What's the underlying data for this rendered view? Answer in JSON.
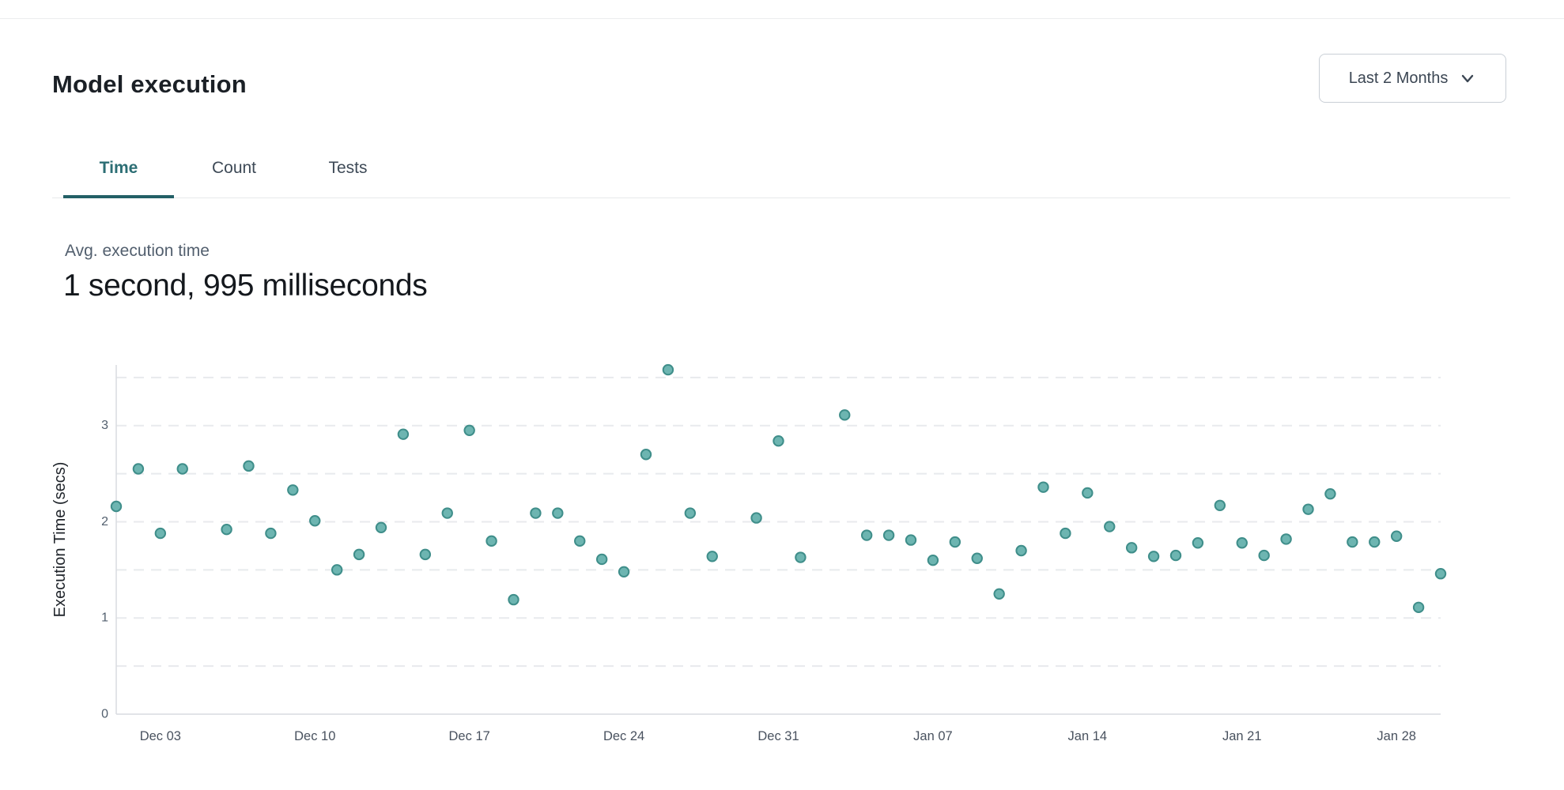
{
  "header": {
    "title": "Model execution"
  },
  "range_selector": {
    "label": "Last 2 Months",
    "icon": "chevron-down"
  },
  "tabs": [
    {
      "label": "Time",
      "active": true
    },
    {
      "label": "Count",
      "active": false
    },
    {
      "label": "Tests",
      "active": false
    }
  ],
  "stats": {
    "label": "Avg. execution time",
    "value": "1 second, 995 milliseconds"
  },
  "colors": {
    "accent_teal": "#2c6e74",
    "tab_underline": "#236066",
    "point_fill": "#6db5b1",
    "point_stroke": "#3f8e8a",
    "grid": "#e8eaed",
    "axis": "#d9dce0",
    "tick_text": "#525f6e",
    "top_rule": "#ecedef"
  },
  "chart_data": {
    "type": "scatter",
    "title": "",
    "xlabel": "",
    "ylabel": "Execution Time (secs)",
    "x_unit": "days since Dec 01",
    "xlim": [
      0,
      60
    ],
    "ylim": [
      0,
      3.63
    ],
    "grid": "horizontal dashed every 0.5",
    "legend": "none",
    "y_ticks": [
      0,
      1,
      2,
      3
    ],
    "x_ticks": [
      {
        "day": 2,
        "label": "Dec 03"
      },
      {
        "day": 9,
        "label": "Dec 10"
      },
      {
        "day": 16,
        "label": "Dec 17"
      },
      {
        "day": 23,
        "label": "Dec 24"
      },
      {
        "day": 30,
        "label": "Dec 31"
      },
      {
        "day": 37,
        "label": "Jan 07"
      },
      {
        "day": 44,
        "label": "Jan 14"
      },
      {
        "day": 51,
        "label": "Jan 21"
      },
      {
        "day": 58,
        "label": "Jan 28"
      }
    ],
    "points": [
      [
        0,
        2.16
      ],
      [
        1,
        2.55
      ],
      [
        2,
        1.88
      ],
      [
        3,
        2.55
      ],
      [
        5,
        1.92
      ],
      [
        6,
        2.58
      ],
      [
        7,
        1.88
      ],
      [
        8,
        2.33
      ],
      [
        9,
        2.01
      ],
      [
        10,
        1.5
      ],
      [
        11,
        1.66
      ],
      [
        12,
        1.94
      ],
      [
        13,
        2.91
      ],
      [
        14,
        1.66
      ],
      [
        15,
        2.09
      ],
      [
        16,
        2.95
      ],
      [
        17,
        1.8
      ],
      [
        18,
        1.19
      ],
      [
        19,
        2.09
      ],
      [
        20,
        2.09
      ],
      [
        21,
        1.8
      ],
      [
        22,
        1.61
      ],
      [
        23,
        1.48
      ],
      [
        24,
        2.7
      ],
      [
        25,
        3.58
      ],
      [
        26,
        2.09
      ],
      [
        27,
        1.64
      ],
      [
        29,
        2.04
      ],
      [
        30,
        2.84
      ],
      [
        31,
        1.63
      ],
      [
        33,
        3.11
      ],
      [
        34,
        1.86
      ],
      [
        35,
        1.86
      ],
      [
        36,
        1.81
      ],
      [
        37,
        1.6
      ],
      [
        38,
        1.79
      ],
      [
        39,
        1.62
      ],
      [
        40,
        1.25
      ],
      [
        41,
        1.7
      ],
      [
        42,
        2.36
      ],
      [
        43,
        1.88
      ],
      [
        44,
        2.3
      ],
      [
        45,
        1.95
      ],
      [
        46,
        1.73
      ],
      [
        47,
        1.64
      ],
      [
        48,
        1.65
      ],
      [
        49,
        1.78
      ],
      [
        50,
        2.17
      ],
      [
        51,
        1.78
      ],
      [
        52,
        1.65
      ],
      [
        53,
        1.82
      ],
      [
        54,
        2.13
      ],
      [
        55,
        2.29
      ],
      [
        56,
        1.79
      ],
      [
        57,
        1.79
      ],
      [
        58,
        1.85
      ],
      [
        59,
        1.11
      ],
      [
        60,
        1.46
      ]
    ]
  }
}
